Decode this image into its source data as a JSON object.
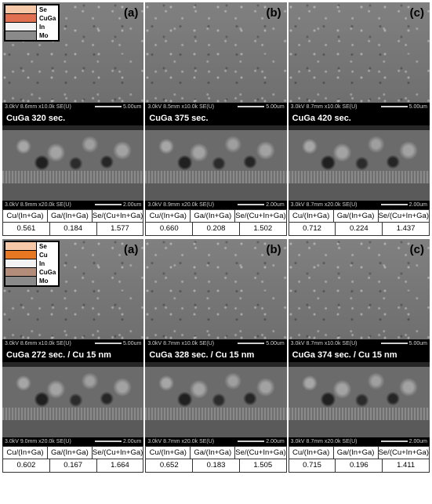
{
  "blocks": [
    {
      "legend": [
        {
          "label": "Se",
          "color": "#f6c8a8"
        },
        {
          "label": "CuGa",
          "color": "#e07050"
        },
        {
          "label": "In",
          "color": "#f2f2f2"
        },
        {
          "label": "Mo",
          "color": "#8a8a8a"
        }
      ],
      "panels": [
        {
          "tag": "(a)",
          "top_meta_left": "3.0kV 8.6mm x10.0k SE(U)",
          "top_meta_scale": "5.00um",
          "caption": "CuGa 320 sec.",
          "cross_meta_left": "3.0kV 8.9mm x20.0k SE(U)",
          "cross_meta_scale": "2.00um",
          "table": {
            "headers": [
              "Cu/(In+Ga)",
              "Ga/(In+Ga)",
              "Se/(Cu+In+Ga)"
            ],
            "values": [
              "0.561",
              "0.184",
              "1.577"
            ]
          }
        },
        {
          "tag": "(b)",
          "top_meta_left": "3.0kV 8.5mm x10.0k SE(U)",
          "top_meta_scale": "5.00um",
          "caption": "CuGa 375 sec.",
          "cross_meta_left": "3.0kV 8.9mm x20.0k SE(U)",
          "cross_meta_scale": "2.00um",
          "table": {
            "headers": [
              "Cu/(In+Ga)",
              "Ga/(In+Ga)",
              "Se/(Cu+In+Ga)"
            ],
            "values": [
              "0.660",
              "0.208",
              "1.502"
            ]
          }
        },
        {
          "tag": "(c)",
          "top_meta_left": "3.0kV 8.7mm x10.0k SE(U)",
          "top_meta_scale": "5.00um",
          "caption": "CuGa 420 sec.",
          "cross_meta_left": "3.0kV 8.7mm x20.0k SE(U)",
          "cross_meta_scale": "2.00um",
          "table": {
            "headers": [
              "Cu/(In+Ga)",
              "Ga/(In+Ga)",
              "Se/(Cu+In+Ga)"
            ],
            "values": [
              "0.712",
              "0.224",
              "1.437"
            ]
          }
        }
      ]
    },
    {
      "legend": [
        {
          "label": "Se",
          "color": "#f6c8a8"
        },
        {
          "label": "Cu",
          "color": "#e87722"
        },
        {
          "label": "In",
          "color": "#f2f2f2"
        },
        {
          "label": "CuGa",
          "color": "#b38c7a"
        },
        {
          "label": "Mo",
          "color": "#8a8a8a"
        }
      ],
      "panels": [
        {
          "tag": "(a)",
          "top_meta_left": "3.0kV 8.6mm x10.0k SE(U)",
          "top_meta_scale": "5.00um",
          "caption": "CuGa 272 sec. / Cu 15 nm",
          "cross_meta_left": "3.0kV 9.0mm x20.0k SE(U)",
          "cross_meta_scale": "2.00um",
          "table": {
            "headers": [
              "Cu/(In+Ga)",
              "Ga/(In+Ga)",
              "Se/(Cu+In+Ga)"
            ],
            "values": [
              "0.602",
              "0.167",
              "1.664"
            ]
          }
        },
        {
          "tag": "(b)",
          "top_meta_left": "3.0kV 8.7mm x10.0k SE(U)",
          "top_meta_scale": "5.00um",
          "caption": "CuGa 328 sec. / Cu 15 nm",
          "cross_meta_left": "3.0kV 8.7mm x20.0k SE(U)",
          "cross_meta_scale": "2.00um",
          "table": {
            "headers": [
              "Cu/(In+Ga)",
              "Ga/(In+Ga)",
              "Se/(Cu+In+Ga)"
            ],
            "values": [
              "0.652",
              "0.183",
              "1.505"
            ]
          }
        },
        {
          "tag": "(c)",
          "top_meta_left": "3.0kV 8.7mm x10.0k SE(U)",
          "top_meta_scale": "5.00um",
          "caption": "CuGa 374 sec. / Cu 15 nm",
          "cross_meta_left": "3.0kV 8.7mm x20.0k SE(U)",
          "cross_meta_scale": "2.00um",
          "table": {
            "headers": [
              "Cu/(In+Ga)",
              "Ga/(In+Ga)",
              "Se/(Cu+In+Ga)"
            ],
            "values": [
              "0.715",
              "0.196",
              "1.411"
            ]
          }
        }
      ]
    }
  ],
  "style": {
    "font_family": "Arial, sans-serif",
    "table_border_color": "#333333",
    "meta_bg": "#000000",
    "meta_fg": "#cfcfcf",
    "caption_bg": "#000000",
    "caption_fg": "#ffffff",
    "sem_top_bg": "#7c7c7c",
    "panel_label_color": "#000000"
  }
}
